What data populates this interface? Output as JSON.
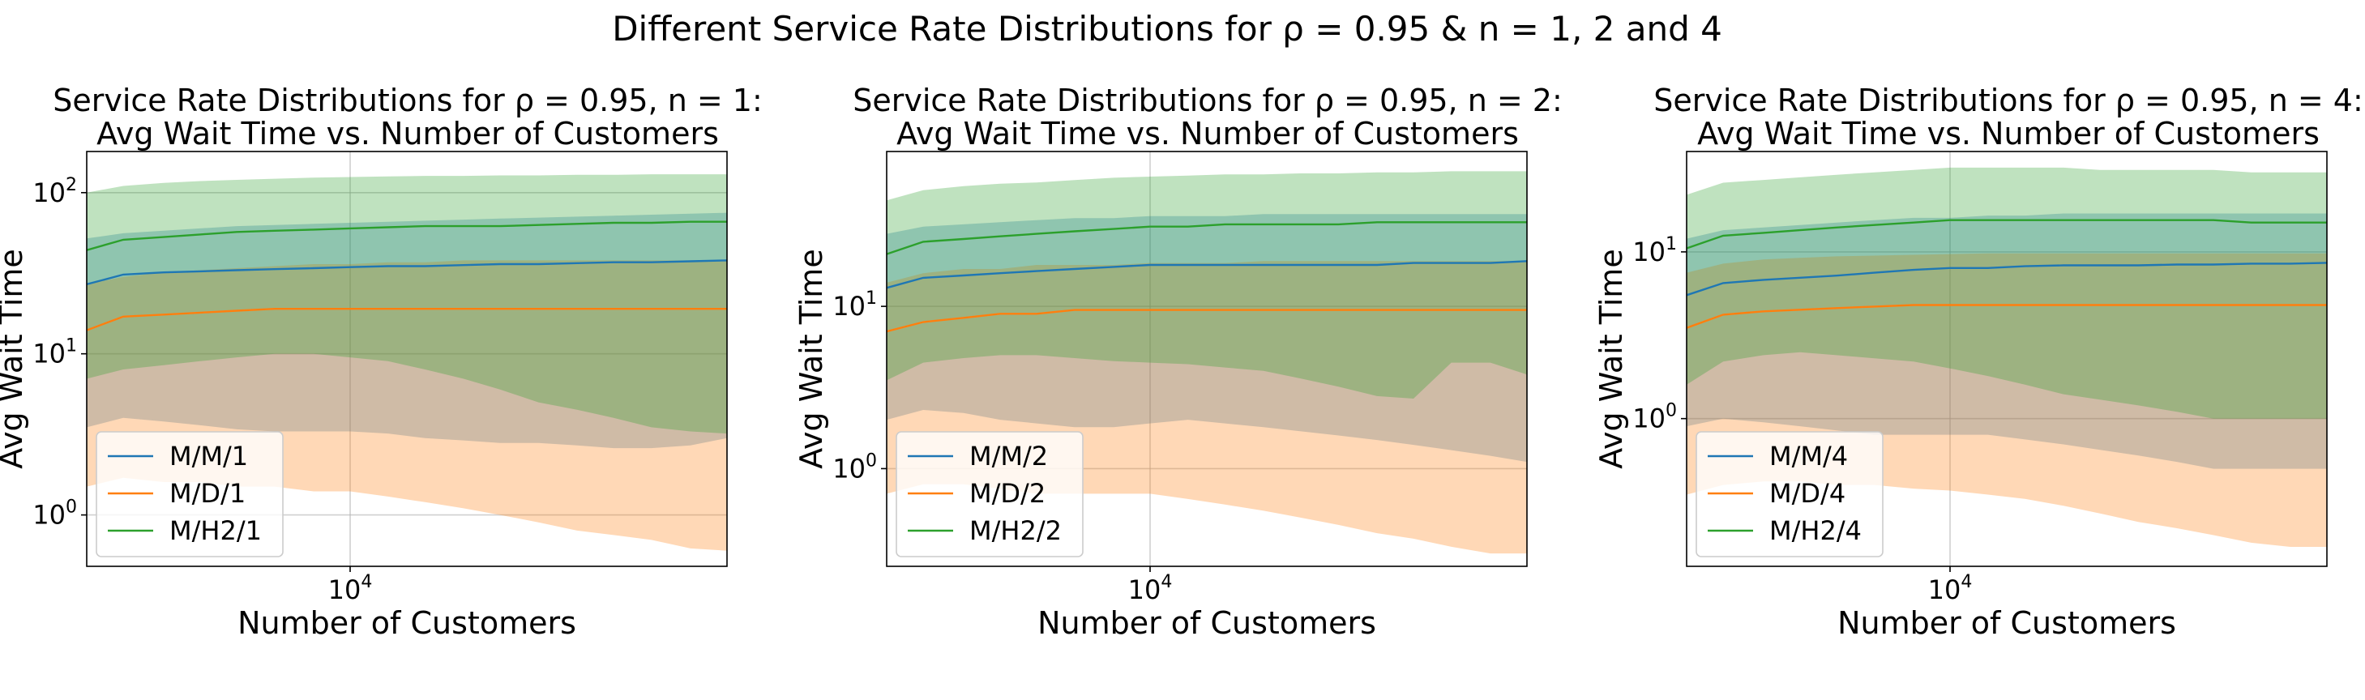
{
  "suptitle": "Different Service Rate Distributions for ρ = 0.95 & n = 1, 2 and 4",
  "colors": {
    "M/M": "#1f77b4",
    "M/D": "#ff7f0e",
    "M/H2": "#2ca02c"
  },
  "chart_data": [
    {
      "type": "line",
      "title_line1": "Service Rate Distributions for ρ = 0.95, n = 1:",
      "title_line2": "Avg Wait Time vs. Number of Customers",
      "xlabel": "Number of Customers",
      "ylabel": "Avg Wait Time",
      "xscale": "log",
      "yscale": "log",
      "xlim": [
        2000,
        100000
      ],
      "ylim": [
        0.48,
        180
      ],
      "xticks": [
        {
          "value": 10000,
          "label": "10^4"
        }
      ],
      "yticks": [
        {
          "value": 1,
          "label": "10^0"
        },
        {
          "value": 10,
          "label": "10^1"
        },
        {
          "value": 100,
          "label": "10^2"
        }
      ],
      "grid": true,
      "legend_position": "lower-left",
      "x": [
        2000,
        2500,
        3200,
        4000,
        5000,
        6300,
        8000,
        10000,
        12600,
        15800,
        20000,
        25000,
        31600,
        40000,
        50000,
        63000,
        80000,
        100000
      ],
      "series": [
        {
          "name": "M/M/1",
          "key": "M/M",
          "values": [
            27,
            31,
            32,
            32.5,
            33,
            33.5,
            34,
            34.5,
            35,
            35,
            35.5,
            36,
            36,
            36.5,
            37,
            37,
            37.5,
            38
          ],
          "band_upper": [
            52,
            56,
            58,
            60,
            62,
            63,
            64,
            65,
            66,
            67,
            68,
            69,
            70,
            71,
            72,
            73,
            74,
            75
          ],
          "band_lower": [
            3.5,
            4,
            3.8,
            3.6,
            3.4,
            3.3,
            3.3,
            3.3,
            3.2,
            3.0,
            2.9,
            2.8,
            2.8,
            2.7,
            2.6,
            2.6,
            2.7,
            3.0
          ]
        },
        {
          "name": "M/D/1",
          "key": "M/D",
          "values": [
            14,
            17,
            17.5,
            18,
            18.5,
            19,
            19,
            19,
            19,
            19,
            19,
            19,
            19,
            19,
            19,
            19,
            19,
            19
          ],
          "band_upper": [
            27,
            30,
            32,
            33,
            34,
            35,
            36,
            36,
            37,
            37,
            38,
            38,
            38,
            38,
            38,
            38,
            38,
            38
          ],
          "band_lower": [
            1.5,
            1.7,
            1.6,
            1.6,
            1.5,
            1.5,
            1.4,
            1.4,
            1.3,
            1.2,
            1.1,
            1.0,
            0.9,
            0.8,
            0.75,
            0.7,
            0.62,
            0.6
          ]
        },
        {
          "name": "M/H2/1",
          "key": "M/H2",
          "values": [
            44,
            51,
            53,
            55,
            57,
            58,
            59,
            60,
            61,
            62,
            62,
            62,
            63,
            64,
            65,
            65,
            66,
            66
          ],
          "band_upper": [
            100,
            110,
            115,
            118,
            120,
            122,
            124,
            125,
            126,
            127,
            127,
            128,
            128,
            129,
            129,
            130,
            130,
            130
          ],
          "band_lower": [
            7,
            8,
            8.5,
            9,
            9.5,
            10,
            10,
            9.5,
            9,
            8,
            7,
            6,
            5,
            4.5,
            4,
            3.5,
            3.3,
            3.2
          ]
        }
      ]
    },
    {
      "type": "line",
      "title_line1": "Service Rate Distributions for ρ = 0.95, n = 2:",
      "title_line2": "Avg Wait Time vs. Number of Customers",
      "xlabel": "Number of Customers",
      "ylabel": "Avg Wait Time",
      "xscale": "log",
      "yscale": "log",
      "xlim": [
        2000,
        100000
      ],
      "ylim": [
        0.25,
        90
      ],
      "xticks": [
        {
          "value": 10000,
          "label": "10^4"
        }
      ],
      "yticks": [
        {
          "value": 1,
          "label": "10^0"
        },
        {
          "value": 10,
          "label": "10^1"
        }
      ],
      "grid": true,
      "legend_position": "lower-left",
      "x": [
        2000,
        2500,
        3200,
        4000,
        5000,
        6300,
        8000,
        10000,
        12600,
        15800,
        20000,
        25000,
        31600,
        40000,
        50000,
        63000,
        80000,
        100000
      ],
      "series": [
        {
          "name": "M/M/2",
          "key": "M/M",
          "values": [
            13,
            15,
            15.5,
            16,
            16.5,
            17,
            17.5,
            18,
            18,
            18,
            18,
            18,
            18,
            18,
            18.5,
            18.5,
            18.5,
            19
          ],
          "band_upper": [
            28,
            31,
            32,
            33,
            34,
            35,
            35,
            36,
            36,
            36,
            37,
            37,
            37,
            37,
            37,
            37,
            37,
            37
          ],
          "band_lower": [
            2,
            2.3,
            2.2,
            2.0,
            1.9,
            1.8,
            1.8,
            1.9,
            2.0,
            1.9,
            1.8,
            1.7,
            1.6,
            1.5,
            1.4,
            1.3,
            1.2,
            1.1
          ]
        },
        {
          "name": "M/D/2",
          "key": "M/D",
          "values": [
            7,
            8,
            8.5,
            9,
            9,
            9.5,
            9.5,
            9.5,
            9.5,
            9.5,
            9.5,
            9.5,
            9.5,
            9.5,
            9.5,
            9.5,
            9.5,
            9.5
          ],
          "band_upper": [
            14,
            16,
            17,
            17,
            18,
            18,
            18,
            18.5,
            18.5,
            18.5,
            19,
            19,
            19,
            19,
            19,
            19,
            19,
            19
          ],
          "band_lower": [
            0.7,
            0.8,
            0.8,
            0.75,
            0.7,
            0.7,
            0.7,
            0.7,
            0.65,
            0.6,
            0.55,
            0.5,
            0.45,
            0.4,
            0.37,
            0.33,
            0.3,
            0.3
          ]
        },
        {
          "name": "M/H2/2",
          "key": "M/H2",
          "values": [
            21,
            25,
            26,
            27,
            28,
            29,
            30,
            31,
            31,
            32,
            32,
            32,
            32,
            33,
            33,
            33,
            33,
            33
          ],
          "band_upper": [
            45,
            52,
            55,
            57,
            58,
            60,
            62,
            63,
            64,
            65,
            65,
            66,
            66,
            67,
            67,
            68,
            68,
            68
          ],
          "band_lower": [
            3.5,
            4.5,
            4.8,
            5,
            5,
            4.8,
            4.6,
            4.5,
            4.4,
            4.2,
            4,
            3.6,
            3.2,
            2.8,
            2.7,
            4.5,
            4.5,
            3.8
          ]
        }
      ]
    },
    {
      "type": "line",
      "title_line1": "Service Rate Distributions for ρ = 0.95, n = 4:",
      "title_line2": "Avg Wait Time vs. Number of Customers",
      "xlabel": "Number of Customers",
      "ylabel": "Avg Wait Time",
      "xscale": "log",
      "yscale": "log",
      "xlim": [
        2000,
        100000
      ],
      "ylim": [
        0.13,
        40
      ],
      "xticks": [
        {
          "value": 10000,
          "label": "10^4"
        }
      ],
      "yticks": [
        {
          "value": 1,
          "label": "10^0"
        },
        {
          "value": 10,
          "label": "10^1"
        }
      ],
      "grid": true,
      "legend_position": "lower-left",
      "x": [
        2000,
        2500,
        3200,
        4000,
        5000,
        6300,
        8000,
        10000,
        12600,
        15800,
        20000,
        25000,
        31600,
        40000,
        50000,
        63000,
        80000,
        100000
      ],
      "series": [
        {
          "name": "M/M/4",
          "key": "M/M",
          "values": [
            5.5,
            6.5,
            6.8,
            7,
            7.2,
            7.5,
            7.8,
            8,
            8,
            8.2,
            8.3,
            8.3,
            8.3,
            8.4,
            8.4,
            8.5,
            8.5,
            8.6
          ],
          "band_upper": [
            12,
            13.5,
            14,
            14.5,
            15,
            15.5,
            16,
            16,
            16.5,
            16.5,
            17,
            17,
            17,
            17,
            17,
            17,
            17,
            17
          ],
          "band_lower": [
            0.9,
            1.0,
            0.95,
            0.9,
            0.85,
            0.8,
            0.8,
            0.8,
            0.8,
            0.75,
            0.7,
            0.65,
            0.6,
            0.55,
            0.5,
            0.5,
            0.5,
            0.5
          ]
        },
        {
          "name": "M/D/4",
          "key": "M/D",
          "values": [
            3.5,
            4.2,
            4.4,
            4.5,
            4.6,
            4.7,
            4.8,
            4.8,
            4.8,
            4.8,
            4.8,
            4.8,
            4.8,
            4.8,
            4.8,
            4.8,
            4.8,
            4.8
          ],
          "band_upper": [
            7.5,
            8.5,
            9,
            9.2,
            9.4,
            9.5,
            9.6,
            9.7,
            9.8,
            9.8,
            9.8,
            9.8,
            9.8,
            9.8,
            9.8,
            9.8,
            9.8,
            9.8
          ],
          "band_lower": [
            0.35,
            0.4,
            0.42,
            0.42,
            0.4,
            0.4,
            0.38,
            0.37,
            0.35,
            0.33,
            0.3,
            0.27,
            0.24,
            0.22,
            0.2,
            0.18,
            0.17,
            0.17
          ]
        },
        {
          "name": "M/H2/4",
          "key": "M/H2",
          "values": [
            10.5,
            12.5,
            13,
            13.5,
            14,
            14.5,
            15,
            15.5,
            15.5,
            15.5,
            15.5,
            15.5,
            15.5,
            15.5,
            15.5,
            15,
            15,
            15
          ],
          "band_upper": [
            22,
            26,
            27,
            28,
            29,
            30,
            31,
            32,
            32,
            32,
            32,
            31,
            31,
            31,
            31,
            30,
            30,
            30
          ],
          "band_lower": [
            1.6,
            2.2,
            2.4,
            2.5,
            2.4,
            2.3,
            2.2,
            2.0,
            1.8,
            1.6,
            1.4,
            1.3,
            1.2,
            1.1,
            1.0,
            1.0,
            1.0,
            1.0
          ]
        }
      ]
    }
  ]
}
